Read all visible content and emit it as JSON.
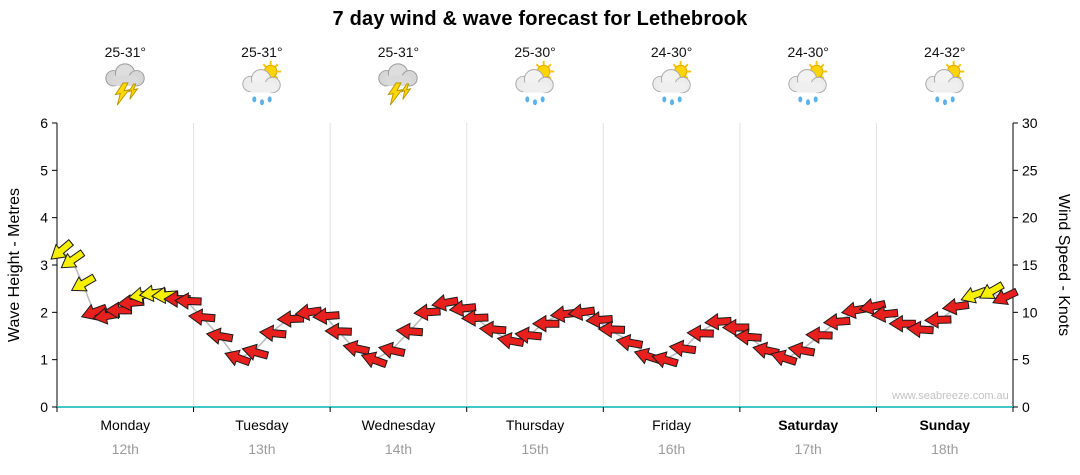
{
  "title": "7 day wind & wave forecast for Lethebrook",
  "watermark": "www.seabreeze.com.au",
  "axes": {
    "left_label": "Wave Height - Metres",
    "right_label": "Wind Speed - Knots"
  },
  "days": [
    {
      "name": "Monday",
      "date": "12th",
      "temp": "25-31°",
      "icon": "storm-icon",
      "bold": false
    },
    {
      "name": "Tuesday",
      "date": "13th",
      "temp": "25-31°",
      "icon": "sun-showers-icon",
      "bold": false
    },
    {
      "name": "Wednesday",
      "date": "14th",
      "temp": "25-31°",
      "icon": "storm-icon",
      "bold": false
    },
    {
      "name": "Thursday",
      "date": "15th",
      "temp": "25-30°",
      "icon": "sun-showers-icon",
      "bold": false
    },
    {
      "name": "Friday",
      "date": "16th",
      "temp": "24-30°",
      "icon": "sun-showers-icon",
      "bold": false
    },
    {
      "name": "Saturday",
      "date": "17th",
      "temp": "24-30°",
      "icon": "sun-showers-icon",
      "bold": true
    },
    {
      "name": "Sunday",
      "date": "18th",
      "temp": "24-32°",
      "icon": "sun-showers-icon",
      "bold": true
    }
  ],
  "chart_data": {
    "type": "scatter",
    "subtype": "wind-arrows-over-time",
    "title": "7 day wind & wave forecast for Lethebrook",
    "x_axis": {
      "range_days": [
        0,
        7
      ],
      "tick_labels": [
        "Monday 12th",
        "Tuesday 13th",
        "Wednesday 14th",
        "Thursday 15th",
        "Friday 16th",
        "Saturday 17th",
        "Sunday 18th"
      ]
    },
    "left_axis": {
      "label": "Wave Height - Metres",
      "range": [
        0,
        6
      ],
      "ticks": [
        0,
        1,
        2,
        3,
        4,
        5,
        6
      ]
    },
    "right_axis": {
      "label": "Wind Speed - Knots",
      "range": [
        0,
        30
      ],
      "ticks": [
        0,
        5,
        10,
        15,
        20,
        25,
        30
      ]
    },
    "colors": {
      "strong": "#f7ef00",
      "normal": "#e8201d",
      "wave_line": "#b9b9b9",
      "baseline": "#3fc8c8"
    },
    "series": [
      {
        "name": "Wind speed & direction arrows",
        "unit": "knots",
        "points": [
          {
            "t": 0.03,
            "knots": 16.5,
            "metres": 3.3,
            "dir": 140,
            "strength": "strong"
          },
          {
            "t": 0.11,
            "knots": 15.5,
            "metres": 3.1,
            "dir": 145,
            "strength": "strong"
          },
          {
            "t": 0.19,
            "knots": 13.0,
            "metres": 2.6,
            "dir": 150,
            "strength": "strong"
          },
          {
            "t": 0.27,
            "knots": 10.0,
            "metres": 2.0,
            "dir": 160,
            "strength": "normal"
          },
          {
            "t": 0.36,
            "knots": 9.6,
            "metres": 1.9,
            "dir": 170,
            "strength": "normal"
          },
          {
            "t": 0.45,
            "knots": 10.2,
            "metres": 2.0,
            "dir": 180,
            "strength": "normal"
          },
          {
            "t": 0.54,
            "knots": 11.0,
            "metres": 2.2,
            "dir": 175,
            "strength": "normal"
          },
          {
            "t": 0.62,
            "knots": 11.8,
            "metres": 2.4,
            "dir": 170,
            "strength": "strong"
          },
          {
            "t": 0.7,
            "knots": 12.0,
            "metres": 2.4,
            "dir": 172,
            "strength": "strong"
          },
          {
            "t": 0.79,
            "knots": 11.8,
            "metres": 2.4,
            "dir": 176,
            "strength": "strong"
          },
          {
            "t": 0.88,
            "knots": 11.4,
            "metres": 2.3,
            "dir": 180,
            "strength": "normal"
          },
          {
            "t": 0.96,
            "knots": 11.2,
            "metres": 2.2,
            "dir": 182,
            "strength": "normal"
          },
          {
            "t": 1.06,
            "knots": 9.5,
            "metres": 1.9,
            "dir": 185,
            "strength": "normal"
          },
          {
            "t": 1.19,
            "knots": 7.5,
            "metres": 1.5,
            "dir": 190,
            "strength": "normal"
          },
          {
            "t": 1.32,
            "knots": 5.2,
            "metres": 1.0,
            "dir": 200,
            "strength": "normal"
          },
          {
            "t": 1.45,
            "knots": 5.8,
            "metres": 1.2,
            "dir": 195,
            "strength": "normal"
          },
          {
            "t": 1.58,
            "knots": 7.8,
            "metres": 1.6,
            "dir": 185,
            "strength": "normal"
          },
          {
            "t": 1.71,
            "knots": 9.3,
            "metres": 1.9,
            "dir": 178,
            "strength": "normal"
          },
          {
            "t": 1.84,
            "knots": 10.0,
            "metres": 2.0,
            "dir": 172,
            "strength": "normal"
          },
          {
            "t": 1.97,
            "knots": 9.6,
            "metres": 1.9,
            "dir": 176,
            "strength": "normal"
          },
          {
            "t": 2.06,
            "knots": 8.0,
            "metres": 1.6,
            "dir": 182,
            "strength": "normal"
          },
          {
            "t": 2.19,
            "knots": 6.2,
            "metres": 1.2,
            "dir": 192,
            "strength": "normal"
          },
          {
            "t": 2.32,
            "knots": 5.0,
            "metres": 1.0,
            "dir": 200,
            "strength": "normal"
          },
          {
            "t": 2.45,
            "knots": 6.0,
            "metres": 1.2,
            "dir": 192,
            "strength": "normal"
          },
          {
            "t": 2.58,
            "knots": 8.0,
            "metres": 1.6,
            "dir": 184,
            "strength": "normal"
          },
          {
            "t": 2.71,
            "knots": 10.0,
            "metres": 2.0,
            "dir": 176,
            "strength": "normal"
          },
          {
            "t": 2.84,
            "knots": 11.0,
            "metres": 2.2,
            "dir": 170,
            "strength": "normal"
          },
          {
            "t": 2.97,
            "knots": 10.4,
            "metres": 2.1,
            "dir": 174,
            "strength": "normal"
          },
          {
            "t": 3.06,
            "knots": 9.4,
            "metres": 1.9,
            "dir": 178,
            "strength": "normal"
          },
          {
            "t": 3.19,
            "knots": 8.2,
            "metres": 1.6,
            "dir": 184,
            "strength": "normal"
          },
          {
            "t": 3.32,
            "knots": 7.0,
            "metres": 1.4,
            "dir": 190,
            "strength": "normal"
          },
          {
            "t": 3.45,
            "knots": 7.6,
            "metres": 1.5,
            "dir": 186,
            "strength": "normal"
          },
          {
            "t": 3.58,
            "knots": 8.8,
            "metres": 1.8,
            "dir": 180,
            "strength": "normal"
          },
          {
            "t": 3.71,
            "knots": 9.8,
            "metres": 2.0,
            "dir": 174,
            "strength": "normal"
          },
          {
            "t": 3.84,
            "knots": 10.0,
            "metres": 2.0,
            "dir": 172,
            "strength": "normal"
          },
          {
            "t": 3.97,
            "knots": 9.2,
            "metres": 1.8,
            "dir": 176,
            "strength": "normal"
          },
          {
            "t": 4.06,
            "knots": 8.2,
            "metres": 1.6,
            "dir": 182,
            "strength": "normal"
          },
          {
            "t": 4.19,
            "knots": 6.8,
            "metres": 1.4,
            "dir": 190,
            "strength": "normal"
          },
          {
            "t": 4.32,
            "knots": 5.4,
            "metres": 1.1,
            "dir": 198,
            "strength": "normal"
          },
          {
            "t": 4.45,
            "knots": 5.0,
            "metres": 1.0,
            "dir": 196,
            "strength": "normal"
          },
          {
            "t": 4.58,
            "knots": 6.2,
            "metres": 1.2,
            "dir": 188,
            "strength": "normal"
          },
          {
            "t": 4.71,
            "knots": 7.8,
            "metres": 1.6,
            "dir": 182,
            "strength": "normal"
          },
          {
            "t": 4.84,
            "knots": 9.0,
            "metres": 1.8,
            "dir": 176,
            "strength": "normal"
          },
          {
            "t": 4.97,
            "knots": 8.4,
            "metres": 1.7,
            "dir": 180,
            "strength": "normal"
          },
          {
            "t": 5.06,
            "knots": 7.4,
            "metres": 1.5,
            "dir": 184,
            "strength": "normal"
          },
          {
            "t": 5.19,
            "knots": 6.0,
            "metres": 1.2,
            "dir": 192,
            "strength": "normal"
          },
          {
            "t": 5.32,
            "knots": 5.2,
            "metres": 1.0,
            "dir": 198,
            "strength": "normal"
          },
          {
            "t": 5.45,
            "knots": 6.0,
            "metres": 1.2,
            "dir": 190,
            "strength": "normal"
          },
          {
            "t": 5.58,
            "knots": 7.6,
            "metres": 1.5,
            "dir": 182,
            "strength": "normal"
          },
          {
            "t": 5.71,
            "knots": 9.0,
            "metres": 1.8,
            "dir": 176,
            "strength": "normal"
          },
          {
            "t": 5.84,
            "knots": 10.2,
            "metres": 2.0,
            "dir": 170,
            "strength": "normal"
          },
          {
            "t": 5.97,
            "knots": 10.6,
            "metres": 2.1,
            "dir": 168,
            "strength": "normal"
          },
          {
            "t": 6.06,
            "knots": 9.8,
            "metres": 2.0,
            "dir": 174,
            "strength": "normal"
          },
          {
            "t": 6.19,
            "knots": 8.8,
            "metres": 1.8,
            "dir": 180,
            "strength": "normal"
          },
          {
            "t": 6.32,
            "knots": 8.2,
            "metres": 1.6,
            "dir": 184,
            "strength": "normal"
          },
          {
            "t": 6.45,
            "knots": 9.2,
            "metres": 1.8,
            "dir": 178,
            "strength": "normal"
          },
          {
            "t": 6.58,
            "knots": 10.6,
            "metres": 2.1,
            "dir": 172,
            "strength": "normal"
          },
          {
            "t": 6.71,
            "knots": 11.8,
            "metres": 2.4,
            "dir": 160,
            "strength": "strong"
          },
          {
            "t": 6.84,
            "knots": 12.2,
            "metres": 2.4,
            "dir": 150,
            "strength": "strong"
          },
          {
            "t": 6.94,
            "knots": 11.6,
            "metres": 2.3,
            "dir": 155,
            "strength": "normal"
          }
        ]
      }
    ]
  }
}
